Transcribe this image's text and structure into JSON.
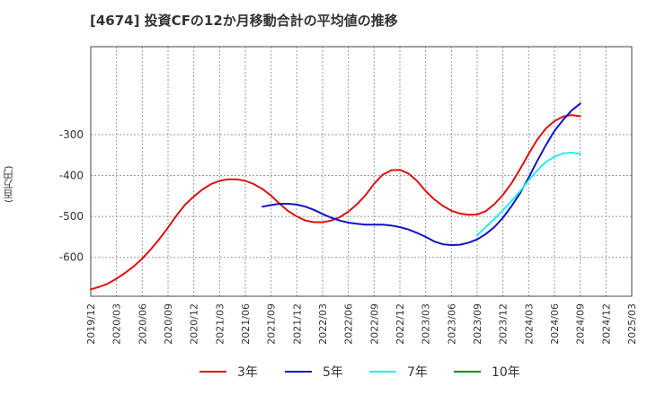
{
  "chart_data": {
    "type": "line",
    "title": "[4674]  投資CFの12か月移動合計の平均値の推移",
    "xlabel": "",
    "ylabel": "(百万円)",
    "ylim": [
      -695,
      -85
    ],
    "yticks": [
      -300,
      -400,
      -500,
      -600
    ],
    "xticks": [
      "2019/12",
      "2020/03",
      "2020/06",
      "2020/09",
      "2020/12",
      "2021/03",
      "2021/06",
      "2021/09",
      "2021/12",
      "2022/03",
      "2022/06",
      "2022/09",
      "2022/12",
      "2023/03",
      "2023/06",
      "2023/09",
      "2023/12",
      "2024/03",
      "2024/06",
      "2024/09",
      "2024/12",
      "2025/03"
    ],
    "grid": true,
    "legend_position": "bottom",
    "series": [
      {
        "name": "3年",
        "color": "#dd1111",
        "x": [
          "2019/12",
          "2020/01",
          "2020/02",
          "2020/03",
          "2020/04",
          "2020/05",
          "2020/06",
          "2020/07",
          "2020/08",
          "2020/09",
          "2020/10",
          "2020/11",
          "2020/12",
          "2021/01",
          "2021/02",
          "2021/03",
          "2021/04",
          "2021/05",
          "2021/06",
          "2021/07",
          "2021/08",
          "2021/09",
          "2021/10",
          "2021/11",
          "2021/12",
          "2022/01",
          "2022/02",
          "2022/03",
          "2022/04",
          "2022/05",
          "2022/06",
          "2022/07",
          "2022/08",
          "2022/09",
          "2022/10",
          "2022/11",
          "2022/12",
          "2023/01",
          "2023/02",
          "2023/03",
          "2023/04",
          "2023/05",
          "2023/06",
          "2023/07",
          "2023/08",
          "2023/09",
          "2023/10",
          "2023/11",
          "2023/12",
          "2024/01",
          "2024/02",
          "2024/03",
          "2024/04",
          "2024/05",
          "2024/06",
          "2024/07",
          "2024/08",
          "2024/09"
        ],
        "values": [
          -678,
          -672,
          -664,
          -652,
          -638,
          -622,
          -603,
          -580,
          -555,
          -527,
          -497,
          -471,
          -451,
          -434,
          -421,
          -413,
          -409,
          -409,
          -413,
          -421,
          -433,
          -449,
          -469,
          -487,
          -500,
          -510,
          -514,
          -514,
          -510,
          -502,
          -488,
          -470,
          -448,
          -420,
          -398,
          -387,
          -386,
          -395,
          -413,
          -438,
          -458,
          -474,
          -486,
          -493,
          -496,
          -495,
          -487,
          -470,
          -447,
          -419,
          -384,
          -347,
          -312,
          -285,
          -267,
          -256,
          -252,
          -255
        ]
      },
      {
        "name": "5年",
        "color": "#1111cc",
        "x": [
          "2021/08",
          "2021/09",
          "2021/10",
          "2021/11",
          "2021/12",
          "2022/01",
          "2022/02",
          "2022/03",
          "2022/04",
          "2022/05",
          "2022/06",
          "2022/07",
          "2022/08",
          "2022/09",
          "2022/10",
          "2022/11",
          "2022/12",
          "2023/01",
          "2023/02",
          "2023/03",
          "2023/04",
          "2023/05",
          "2023/06",
          "2023/07",
          "2023/08",
          "2023/09",
          "2023/10",
          "2023/11",
          "2023/12",
          "2024/01",
          "2024/02",
          "2024/03",
          "2024/04",
          "2024/05",
          "2024/06",
          "2024/07",
          "2024/08",
          "2024/09"
        ],
        "values": [
          -476,
          -472,
          -469,
          -469,
          -471,
          -476,
          -484,
          -494,
          -503,
          -510,
          -515,
          -518,
          -520,
          -520,
          -520,
          -522,
          -526,
          -532,
          -540,
          -550,
          -561,
          -568,
          -570,
          -569,
          -564,
          -556,
          -543,
          -526,
          -503,
          -475,
          -443,
          -405,
          -364,
          -326,
          -291,
          -264,
          -241,
          -224
        ]
      },
      {
        "name": "7年",
        "color": "#22eeee",
        "x": [
          "2023/09",
          "2023/10",
          "2023/11",
          "2023/12",
          "2024/01",
          "2024/02",
          "2024/03",
          "2024/04",
          "2024/05",
          "2024/06",
          "2024/07",
          "2024/08",
          "2024/09"
        ],
        "values": [
          -546,
          -526,
          -506,
          -485,
          -462,
          -438,
          -412,
          -387,
          -367,
          -354,
          -346,
          -344,
          -347
        ]
      },
      {
        "name": "10年",
        "color": "#228822",
        "x": [],
        "values": []
      }
    ]
  }
}
